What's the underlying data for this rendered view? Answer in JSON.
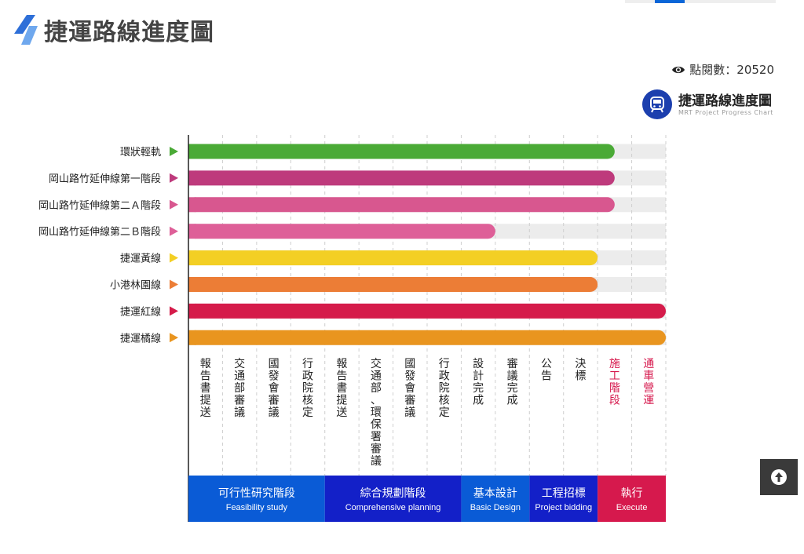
{
  "page": {
    "title": "捷運路線進度圖"
  },
  "views": {
    "label": "點閱數：20520"
  },
  "logo": {
    "title": "捷運路線進度圖",
    "subtitle": "MRT Project Progress Chart"
  },
  "icons": {
    "eye": "eye-icon",
    "logo": "metro-train-icon",
    "scroll_top": "arrow-up-icon",
    "title_mark": "slash-stripes-icon"
  },
  "colors": {
    "track": "#ececec",
    "axis": "#222222",
    "execute_text": "#d6194d"
  },
  "chart_data": {
    "type": "bar",
    "orientation": "horizontal",
    "categories": [
      "報告書提送",
      "交通部審議",
      "國發會審議",
      "行政院核定",
      "報告書提送",
      "交通部、環保署審議",
      "國發會審議",
      "行政院核定",
      "設計完成",
      "審議完成",
      "公告",
      "決標",
      "施工階段",
      "通車營運"
    ],
    "stage_count": 14,
    "series": [
      {
        "name": "環狀輕軌",
        "value": 12.5,
        "color": "#4aaa36"
      },
      {
        "name": "岡山路竹延伸線第一階段",
        "value": 12.5,
        "color": "#be3a7c"
      },
      {
        "name": "岡山路竹延伸線第二Ａ階段",
        "value": 12.5,
        "color": "#d8578f"
      },
      {
        "name": "岡山路竹延伸線第二Ｂ階段",
        "value": 9,
        "color": "#de5f98"
      },
      {
        "name": "捷運黃線",
        "value": 12,
        "color": "#f3cf24"
      },
      {
        "name": "小港林園線",
        "value": 12,
        "color": "#ec7d36"
      },
      {
        "name": "捷運紅線",
        "value": 14,
        "color": "#d51b4a"
      },
      {
        "name": "捷運橘線",
        "value": 14,
        "color": "#e9951f"
      }
    ],
    "phases": [
      {
        "name": "可行性研究階段",
        "sub": "Feasibility study",
        "from": 0,
        "to": 4,
        "color": "#0a5bd6"
      },
      {
        "name": "綜合規劃階段",
        "sub": "Comprehensive planning",
        "from": 4,
        "to": 8,
        "color": "#1320c8"
      },
      {
        "name": "基本設計",
        "sub": "Basic Design",
        "from": 8,
        "to": 10,
        "color": "#0a5bd6"
      },
      {
        "name": "工程招標",
        "sub": "Project bidding",
        "from": 10,
        "to": 12,
        "color": "#1320c8"
      },
      {
        "name": "執行",
        "sub": "Execute",
        "from": 12,
        "to": 14,
        "color": "#d6194d"
      }
    ],
    "xlim": [
      0,
      14
    ],
    "grid": true
  }
}
